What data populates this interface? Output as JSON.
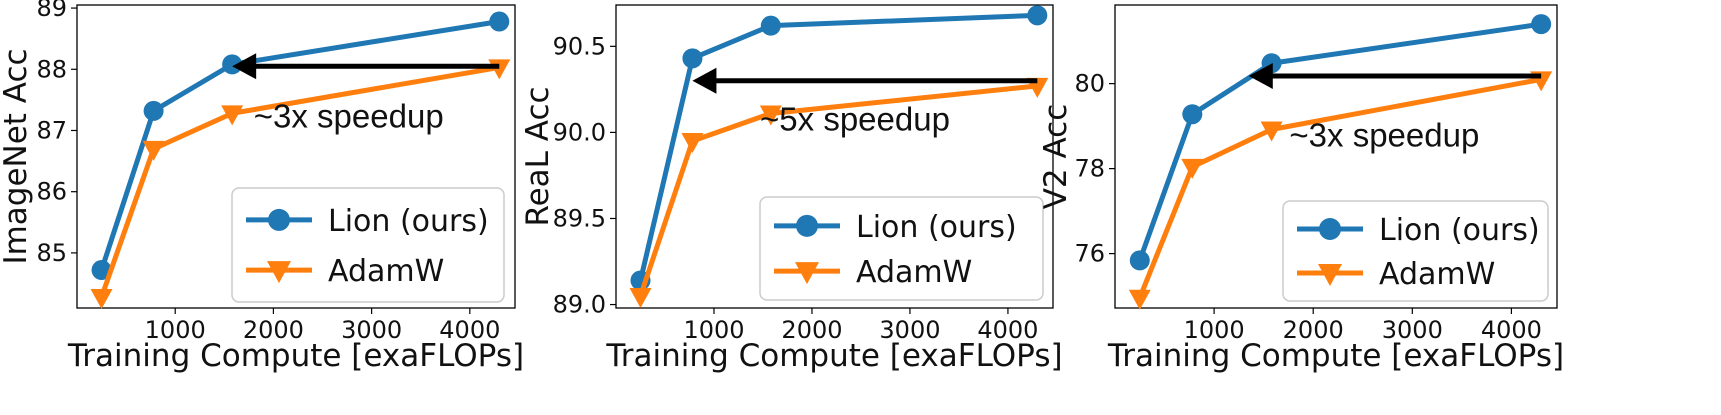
{
  "colors": {
    "lion": "#1f77b4",
    "adamw": "#ff7f0e",
    "arrow": "#000000"
  },
  "chart_data": [
    {
      "type": "line",
      "x": [
        250,
        780,
        1580,
        4300
      ],
      "xlabel": "Training Compute [exaFLOPs]",
      "ylabel": "ImageNet Acc",
      "xlim": [
        0,
        4460
      ],
      "ylim": [
        84.1,
        89.05
      ],
      "xticks": [
        1000,
        2000,
        3000,
        4000
      ],
      "yticks": [
        85,
        86,
        87,
        88,
        89
      ],
      "series": [
        {
          "name": "Lion (ours)",
          "values": [
            84.72,
            87.32,
            88.08,
            88.78
          ]
        },
        {
          "name": "AdamW",
          "values": [
            84.28,
            86.7,
            87.28,
            88.03
          ]
        }
      ],
      "arrow": {
        "x_from": 4300,
        "x_to": 1580,
        "y": 88.05
      },
      "annotation": "~3x speedup",
      "annotation_pos": {
        "x": 1800,
        "y": 87.05
      },
      "legend": "lower-right",
      "grid": false
    },
    {
      "type": "line",
      "x": [
        250,
        780,
        1580,
        4300
      ],
      "xlabel": "Training Compute [exaFLOPs]",
      "ylabel": "ReaL Acc",
      "xlim": [
        0,
        4460
      ],
      "ylim": [
        88.98,
        90.74
      ],
      "xticks": [
        1000,
        2000,
        3000,
        4000
      ],
      "yticks": [
        89.0,
        89.5,
        90.0,
        90.5
      ],
      "ytick_labels": [
        "89.0",
        "89.5",
        "90.0",
        "90.5"
      ],
      "series": [
        {
          "name": "Lion (ours)",
          "values": [
            89.14,
            90.43,
            90.62,
            90.68
          ]
        },
        {
          "name": "AdamW",
          "values": [
            89.05,
            89.95,
            90.11,
            90.27
          ]
        }
      ],
      "arrow": {
        "x_from": 4300,
        "x_to": 780,
        "y": 90.3
      },
      "annotation": "~5x speedup",
      "annotation_pos": {
        "x": 1470,
        "y": 90.01
      },
      "legend": "lower-right",
      "grid": false
    },
    {
      "type": "line",
      "x": [
        250,
        780,
        1580,
        4300
      ],
      "xlabel": "Training Compute [exaFLOPs]",
      "ylabel": "V2 Acc",
      "xlim": [
        0,
        4460
      ],
      "ylim": [
        74.72,
        81.85
      ],
      "xticks": [
        1000,
        2000,
        3000,
        4000
      ],
      "yticks": [
        76,
        78,
        80
      ],
      "series": [
        {
          "name": "Lion (ours)",
          "values": [
            75.84,
            79.28,
            80.48,
            81.4
          ]
        },
        {
          "name": "AdamW",
          "values": [
            74.96,
            78.04,
            78.92,
            80.1
          ]
        }
      ],
      "arrow": {
        "x_from": 4300,
        "x_to": 1350,
        "y": 80.18
      },
      "annotation": "~3x speedup",
      "annotation_pos": {
        "x": 1760,
        "y": 78.52
      },
      "legend": "lower-right",
      "grid": false
    }
  ]
}
